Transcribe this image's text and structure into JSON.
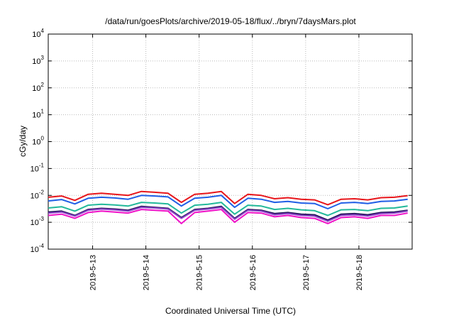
{
  "chart_data": {
    "type": "line",
    "title": "/data/run/goesPlots/archive/2019-05-18/flux/../bryn/7daysMars.plot",
    "xlabel": "Coordinated Universal Time (UTC)",
    "ylabel": "cGy/day",
    "yscale": "log",
    "ylim": [
      0.0001,
      10000
    ],
    "xlim": [
      "2019-05-12T04:00",
      "2019-05-19T00:00"
    ],
    "grid": true,
    "x_ticks": [
      "2019-5-13",
      "2019-5-14",
      "2019-5-15",
      "2019-5-16",
      "2019-5-17",
      "2019-5-18"
    ],
    "y_ticks": [
      {
        "base": "10",
        "exp": "-4"
      },
      {
        "base": "10",
        "exp": "-3"
      },
      {
        "base": "10",
        "exp": "-2"
      },
      {
        "base": "10",
        "exp": "-1"
      },
      {
        "base": "10",
        "exp": "0"
      },
      {
        "base": "10",
        "exp": "1"
      },
      {
        "base": "10",
        "exp": "2"
      },
      {
        "base": "10",
        "exp": "3"
      },
      {
        "base": "10",
        "exp": "4"
      }
    ],
    "x": [
      "2019-05-12T04:00",
      "2019-05-12T10:00",
      "2019-05-12T16:00",
      "2019-05-12T22:00",
      "2019-05-13T04:00",
      "2019-05-13T10:00",
      "2019-05-13T16:00",
      "2019-05-13T22:00",
      "2019-05-14T04:00",
      "2019-05-14T10:00",
      "2019-05-14T16:00",
      "2019-05-14T22:00",
      "2019-05-15T04:00",
      "2019-05-15T10:00",
      "2019-05-15T16:00",
      "2019-05-15T22:00",
      "2019-05-16T04:00",
      "2019-05-16T10:00",
      "2019-05-16T16:00",
      "2019-05-16T22:00",
      "2019-05-17T04:00",
      "2019-05-17T10:00",
      "2019-05-17T16:00",
      "2019-05-17T22:00",
      "2019-05-18T04:00",
      "2019-05-18T10:00",
      "2019-05-18T16:00",
      "2019-05-18T22:00"
    ],
    "series": [
      {
        "color": "#e8161b",
        "values": [
          0.0085,
          0.0095,
          0.0065,
          0.011,
          0.012,
          0.011,
          0.01,
          0.014,
          0.013,
          0.012,
          0.0055,
          0.011,
          0.012,
          0.014,
          0.005,
          0.011,
          0.01,
          0.0075,
          0.0082,
          0.0072,
          0.0068,
          0.0045,
          0.0072,
          0.0075,
          0.0068,
          0.0082,
          0.0085,
          0.0098
        ]
      },
      {
        "color": "#1f5fe6",
        "values": [
          0.0062,
          0.007,
          0.0048,
          0.0078,
          0.0085,
          0.008,
          0.0072,
          0.01,
          0.0095,
          0.0088,
          0.004,
          0.0078,
          0.0085,
          0.01,
          0.0036,
          0.0078,
          0.0072,
          0.0055,
          0.006,
          0.0052,
          0.005,
          0.0032,
          0.0052,
          0.0055,
          0.005,
          0.006,
          0.0062,
          0.0072
        ]
      },
      {
        "color": "#22b99a",
        "values": [
          0.0034,
          0.0038,
          0.0026,
          0.0043,
          0.0047,
          0.0044,
          0.004,
          0.0055,
          0.0052,
          0.0048,
          0.0022,
          0.0043,
          0.0047,
          0.0055,
          0.002,
          0.0043,
          0.004,
          0.003,
          0.0033,
          0.0029,
          0.0027,
          0.0018,
          0.0029,
          0.003,
          0.0027,
          0.0033,
          0.0034,
          0.004
        ]
      },
      {
        "color": "#22135a",
        "values": [
          0.0024,
          0.0026,
          0.0018,
          0.003,
          0.0033,
          0.0031,
          0.0028,
          0.0039,
          0.0036,
          0.0033,
          0.0015,
          0.003,
          0.0033,
          0.0039,
          0.0014,
          0.003,
          0.0028,
          0.0021,
          0.0023,
          0.002,
          0.0019,
          0.0012,
          0.002,
          0.0021,
          0.0019,
          0.0023,
          0.0024,
          0.0028
        ]
      },
      {
        "color": "#8e44c9",
        "values": [
          0.0022,
          0.0024,
          0.0017,
          0.0028,
          0.0031,
          0.0029,
          0.0026,
          0.0036,
          0.0034,
          0.0031,
          0.0014,
          0.0028,
          0.0031,
          0.0036,
          0.0013,
          0.0028,
          0.0026,
          0.0019,
          0.0021,
          0.0018,
          0.0017,
          0.0011,
          0.0018,
          0.0019,
          0.0017,
          0.0021,
          0.0022,
          0.0026
        ]
      },
      {
        "color": "#f012c8",
        "values": [
          0.0018,
          0.002,
          0.0014,
          0.0023,
          0.0026,
          0.0024,
          0.0022,
          0.003,
          0.0028,
          0.0026,
          0.0009,
          0.0023,
          0.0026,
          0.003,
          0.001,
          0.0023,
          0.0022,
          0.0016,
          0.0018,
          0.0015,
          0.0014,
          0.0009,
          0.0015,
          0.0016,
          0.0014,
          0.0018,
          0.0018,
          0.0022
        ]
      }
    ]
  }
}
